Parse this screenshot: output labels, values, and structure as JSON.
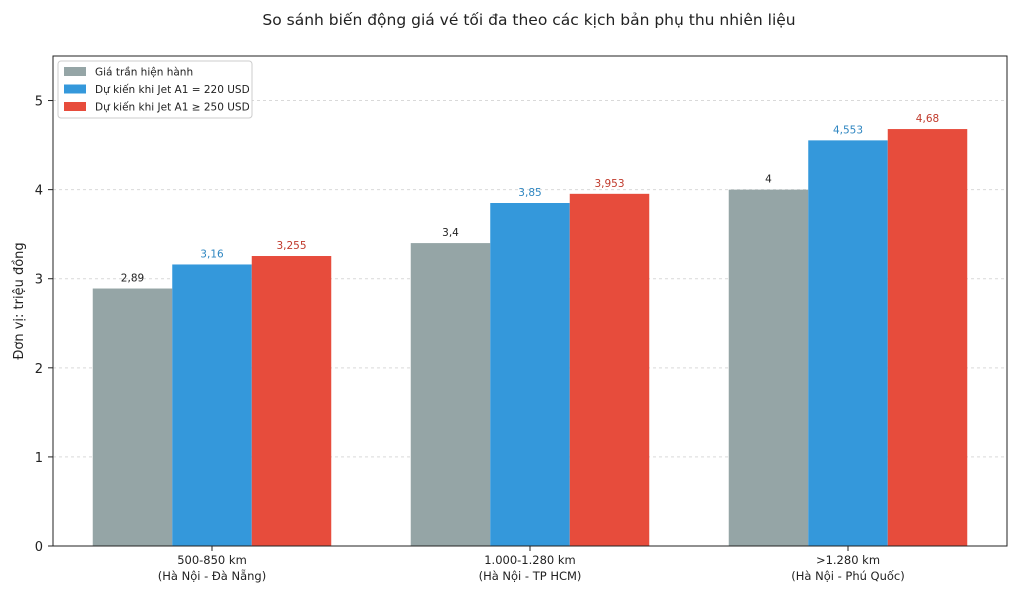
{
  "chart_data": {
    "type": "bar",
    "title": "So sánh biến động giá vé tối đa theo các kịch bản phụ thu nhiên liệu",
    "xlabel": "",
    "ylabel": "Đơn vị: triệu đồng",
    "ylim": [
      0,
      5.5
    ],
    "yticks": [
      "0",
      "1",
      "2",
      "3",
      "4",
      "5"
    ],
    "grid": "horizontal dashed",
    "legend_position": "top-left",
    "categories": [
      [
        "500-850 km",
        "(Hà Nội - Đà Nẵng)"
      ],
      [
        "1.000-1.280 km",
        "(Hà Nội - TP HCM)"
      ],
      [
        ">1.280 km",
        "(Hà Nội - Phú Quốc)"
      ]
    ],
    "series": [
      {
        "name": "Giá trần hiện hành",
        "color": "#95a5a6",
        "label_color": "#222222",
        "values": [
          2.89,
          3.4,
          4
        ],
        "labels": [
          "2,89",
          "3,4",
          "4"
        ]
      },
      {
        "name": "Dự kiến khi Jet A1 = 220 USD",
        "color": "#3498db",
        "label_color": "#2e86c1",
        "values": [
          3.16,
          3.85,
          4.553
        ],
        "labels": [
          "3,16",
          "3,85",
          "4,553"
        ]
      },
      {
        "name": "Dự kiến khi Jet A1 ≥ 250 USD",
        "color": "#e74c3c",
        "label_color": "#c0392b",
        "values": [
          3.255,
          3.953,
          4.68
        ],
        "labels": [
          "3,255",
          "3,953",
          "4,68"
        ]
      }
    ]
  }
}
